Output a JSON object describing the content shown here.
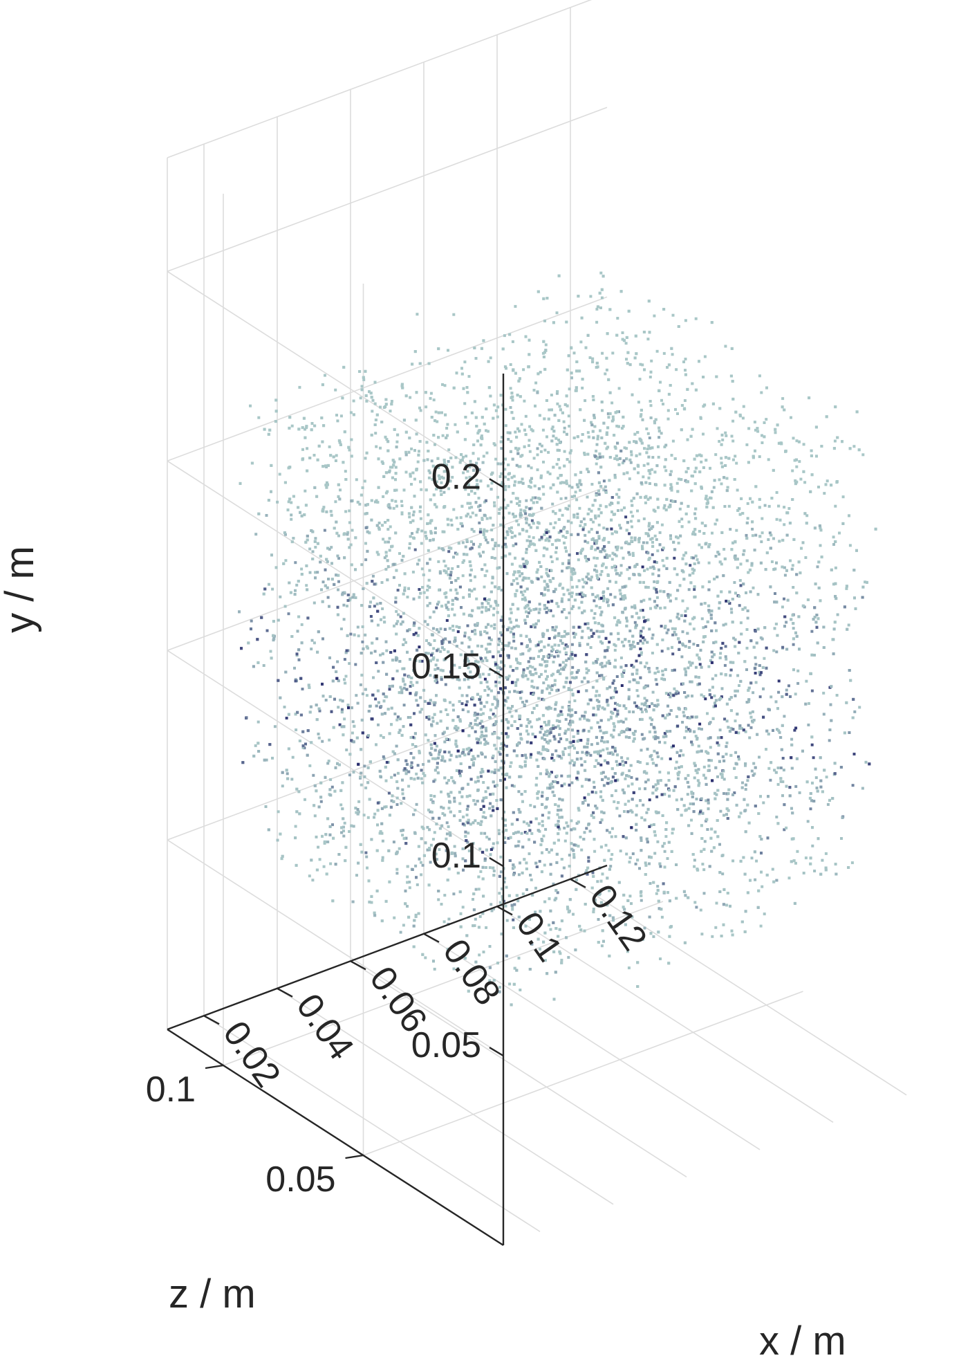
{
  "chart_data": {
    "type": "scatter",
    "projection": "3d",
    "title": "",
    "xlabel": "x / m",
    "ylabel": "y / m",
    "zlabel": "z / m",
    "xlim": [
      0.01,
      0.13
    ],
    "ylim": [
      0.0,
      0.23
    ],
    "zlim": [
      0.0,
      0.12
    ],
    "x_ticks": [
      0.02,
      0.04,
      0.06,
      0.08,
      0.1,
      0.12
    ],
    "x_tick_labels": [
      "0.02",
      "0.04",
      "0.06",
      "0.08",
      "0.1",
      "0.12"
    ],
    "y_ticks": [
      0.05,
      0.1,
      0.15,
      0.2
    ],
    "y_tick_labels": [
      "0.05",
      "0.1",
      "0.15",
      "0.2"
    ],
    "z_ticks": [
      0.05,
      0.1
    ],
    "z_tick_labels": [
      "0.05",
      "0.1"
    ],
    "grid": true,
    "legend": "none",
    "point_cloud": {
      "x_range": [
        0.02,
        0.12
      ],
      "y_range": [
        0.03,
        0.19
      ],
      "z_range": [
        0.01,
        0.11
      ],
      "colors": {
        "light": "#a9c7c7",
        "dark": "#2a2e6e"
      }
    }
  }
}
